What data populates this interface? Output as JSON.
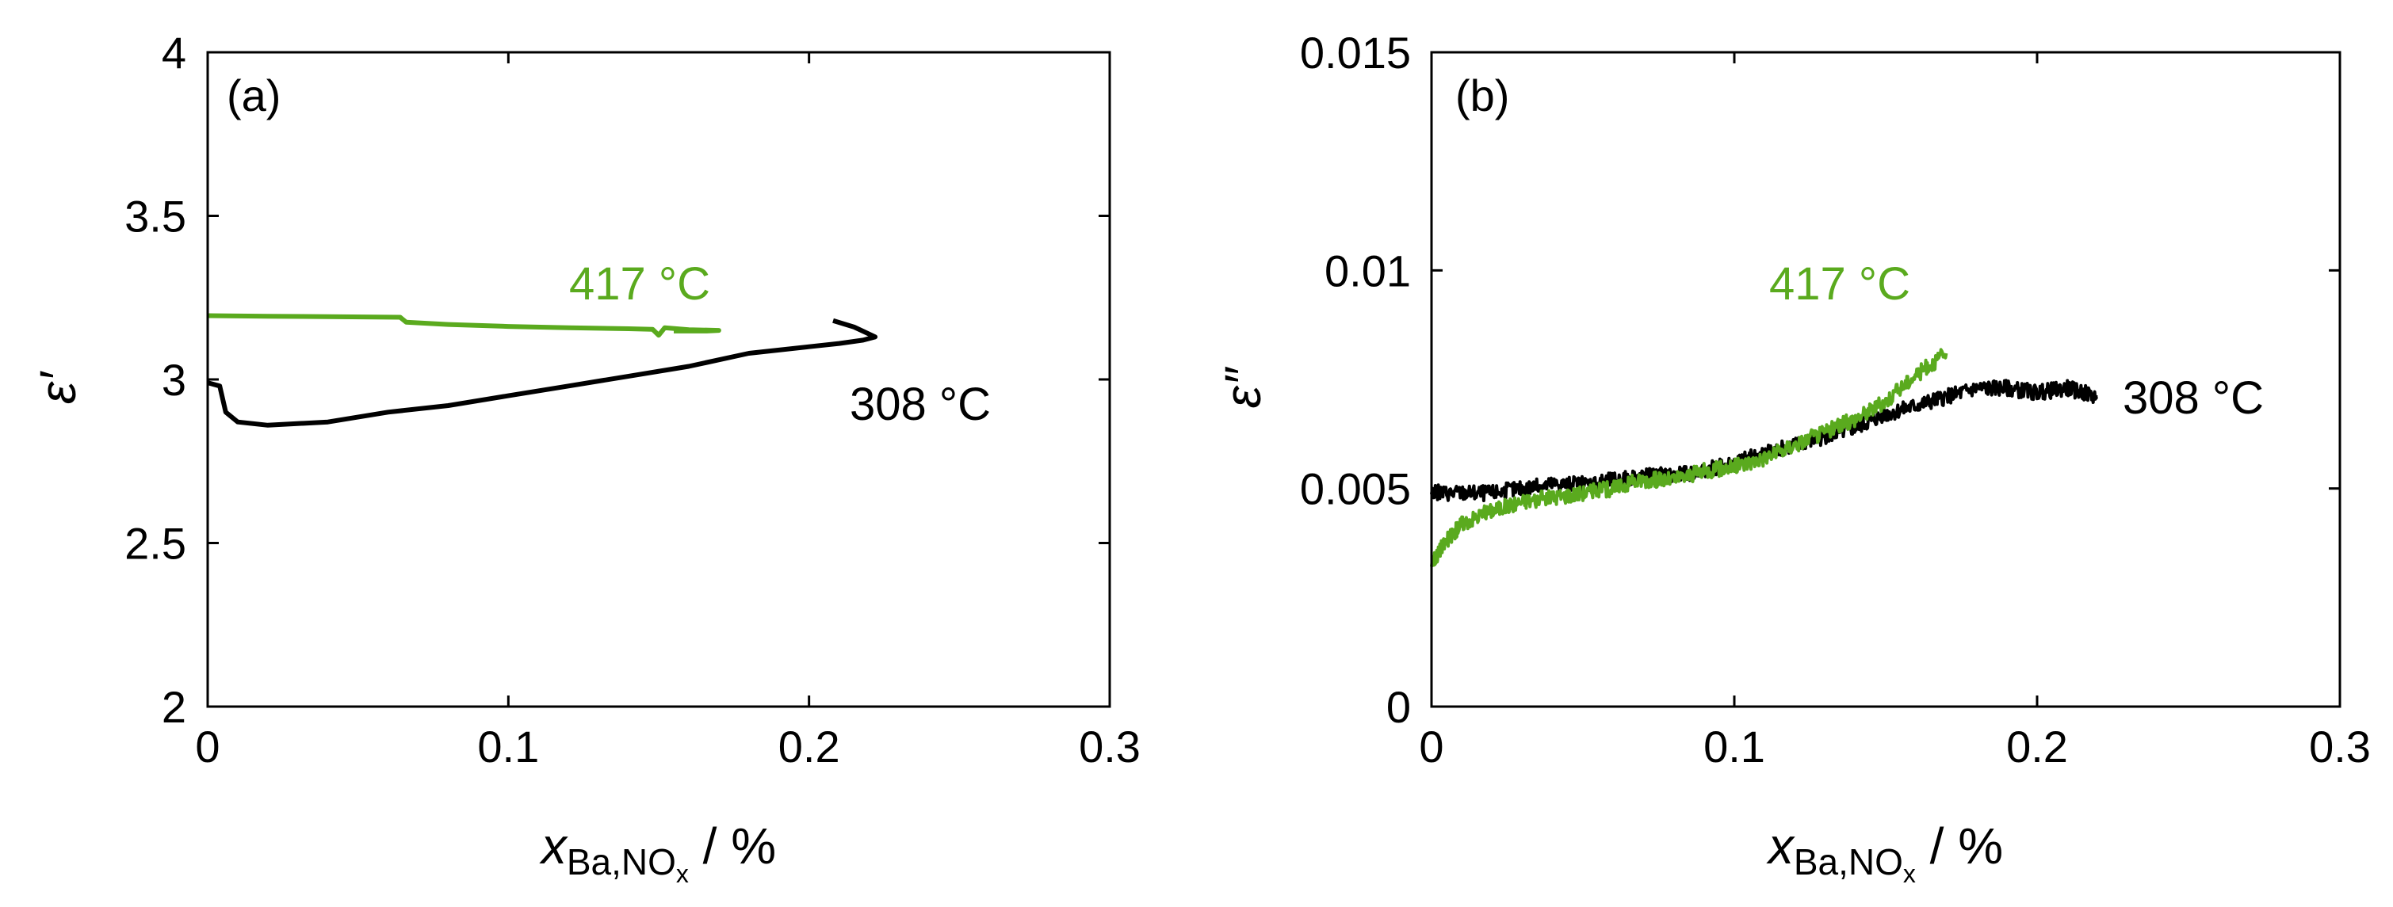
{
  "colors": {
    "green": "#5aaa1e",
    "black": "#000000"
  },
  "chart_data": [
    {
      "type": "line",
      "panel_label": "(a)",
      "ylabel": "ε′",
      "xlabel": {
        "var": "x",
        "sub": "Ba,NO",
        "subsub": "x",
        "unit": " / %"
      },
      "xlim": [
        0,
        0.3
      ],
      "ylim": [
        2,
        4
      ],
      "xticks": [
        0,
        0.1,
        0.2,
        0.3
      ],
      "yticks": [
        2,
        2.5,
        3,
        3.5,
        4
      ],
      "xtick_labels": [
        "0",
        "0.1",
        "0.2",
        "0.3"
      ],
      "ytick_labels": [
        "2",
        "2.5",
        "3",
        "3.5",
        "4"
      ],
      "series": [
        {
          "name": "417 °C",
          "color": "#5aaa1e",
          "x": [
            0.0,
            0.02,
            0.04,
            0.064,
            0.066,
            0.08,
            0.1,
            0.12,
            0.14,
            0.148,
            0.15,
            0.152,
            0.16,
            0.17,
            0.166,
            0.155
          ],
          "y": [
            3.195,
            3.193,
            3.192,
            3.19,
            3.175,
            3.168,
            3.162,
            3.158,
            3.155,
            3.153,
            3.135,
            3.158,
            3.152,
            3.15,
            3.148,
            3.148
          ]
        },
        {
          "name": "308 °C",
          "color": "#000000",
          "x": [
            0.0,
            0.004,
            0.006,
            0.01,
            0.02,
            0.04,
            0.06,
            0.08,
            0.1,
            0.12,
            0.14,
            0.16,
            0.18,
            0.2,
            0.21,
            0.218,
            0.222,
            0.215,
            0.208
          ],
          "y": [
            2.99,
            2.98,
            2.9,
            2.87,
            2.86,
            2.87,
            2.9,
            2.92,
            2.95,
            2.98,
            3.01,
            3.04,
            3.08,
            3.1,
            3.11,
            3.12,
            3.13,
            3.16,
            3.18
          ]
        }
      ]
    },
    {
      "type": "line",
      "panel_label": "(b)",
      "ylabel": "ε″",
      "xlabel": {
        "var": "x",
        "sub": "Ba,NO",
        "subsub": "x",
        "unit": " / %"
      },
      "xlim": [
        0,
        0.3
      ],
      "ylim": [
        0,
        0.015
      ],
      "xticks": [
        0,
        0.1,
        0.2,
        0.3
      ],
      "yticks": [
        0,
        0.005,
        0.01,
        0.015
      ],
      "xtick_labels": [
        "0",
        "0.1",
        "0.2",
        "0.3"
      ],
      "ytick_labels": [
        "0",
        "0.005",
        "0.01",
        "0.015"
      ],
      "series": [
        {
          "name": "308 °C",
          "color": "#000000",
          "x": [
            0.0,
            0.01,
            0.02,
            0.03,
            0.04,
            0.05,
            0.06,
            0.07,
            0.08,
            0.09,
            0.1,
            0.11,
            0.12,
            0.13,
            0.14,
            0.15,
            0.16,
            0.17,
            0.18,
            0.19,
            0.2,
            0.21,
            0.22
          ],
          "y": [
            0.0049,
            0.0049,
            0.0049,
            0.005,
            0.0051,
            0.0051,
            0.0052,
            0.0053,
            0.0053,
            0.0054,
            0.0056,
            0.0058,
            0.006,
            0.0062,
            0.0064,
            0.0067,
            0.0069,
            0.0071,
            0.0073,
            0.0073,
            0.0072,
            0.0073,
            0.0071
          ]
        },
        {
          "name": "417 °C",
          "color": "#5aaa1e",
          "x": [
            0.0,
            0.005,
            0.01,
            0.02,
            0.03,
            0.04,
            0.05,
            0.06,
            0.07,
            0.08,
            0.09,
            0.1,
            0.11,
            0.12,
            0.13,
            0.14,
            0.15,
            0.16,
            0.17
          ],
          "y": [
            0.0033,
            0.0038,
            0.0042,
            0.0045,
            0.0047,
            0.0048,
            0.0049,
            0.005,
            0.0052,
            0.0052,
            0.0054,
            0.0055,
            0.0057,
            0.006,
            0.0063,
            0.0066,
            0.007,
            0.0076,
            0.0081
          ]
        }
      ]
    }
  ]
}
